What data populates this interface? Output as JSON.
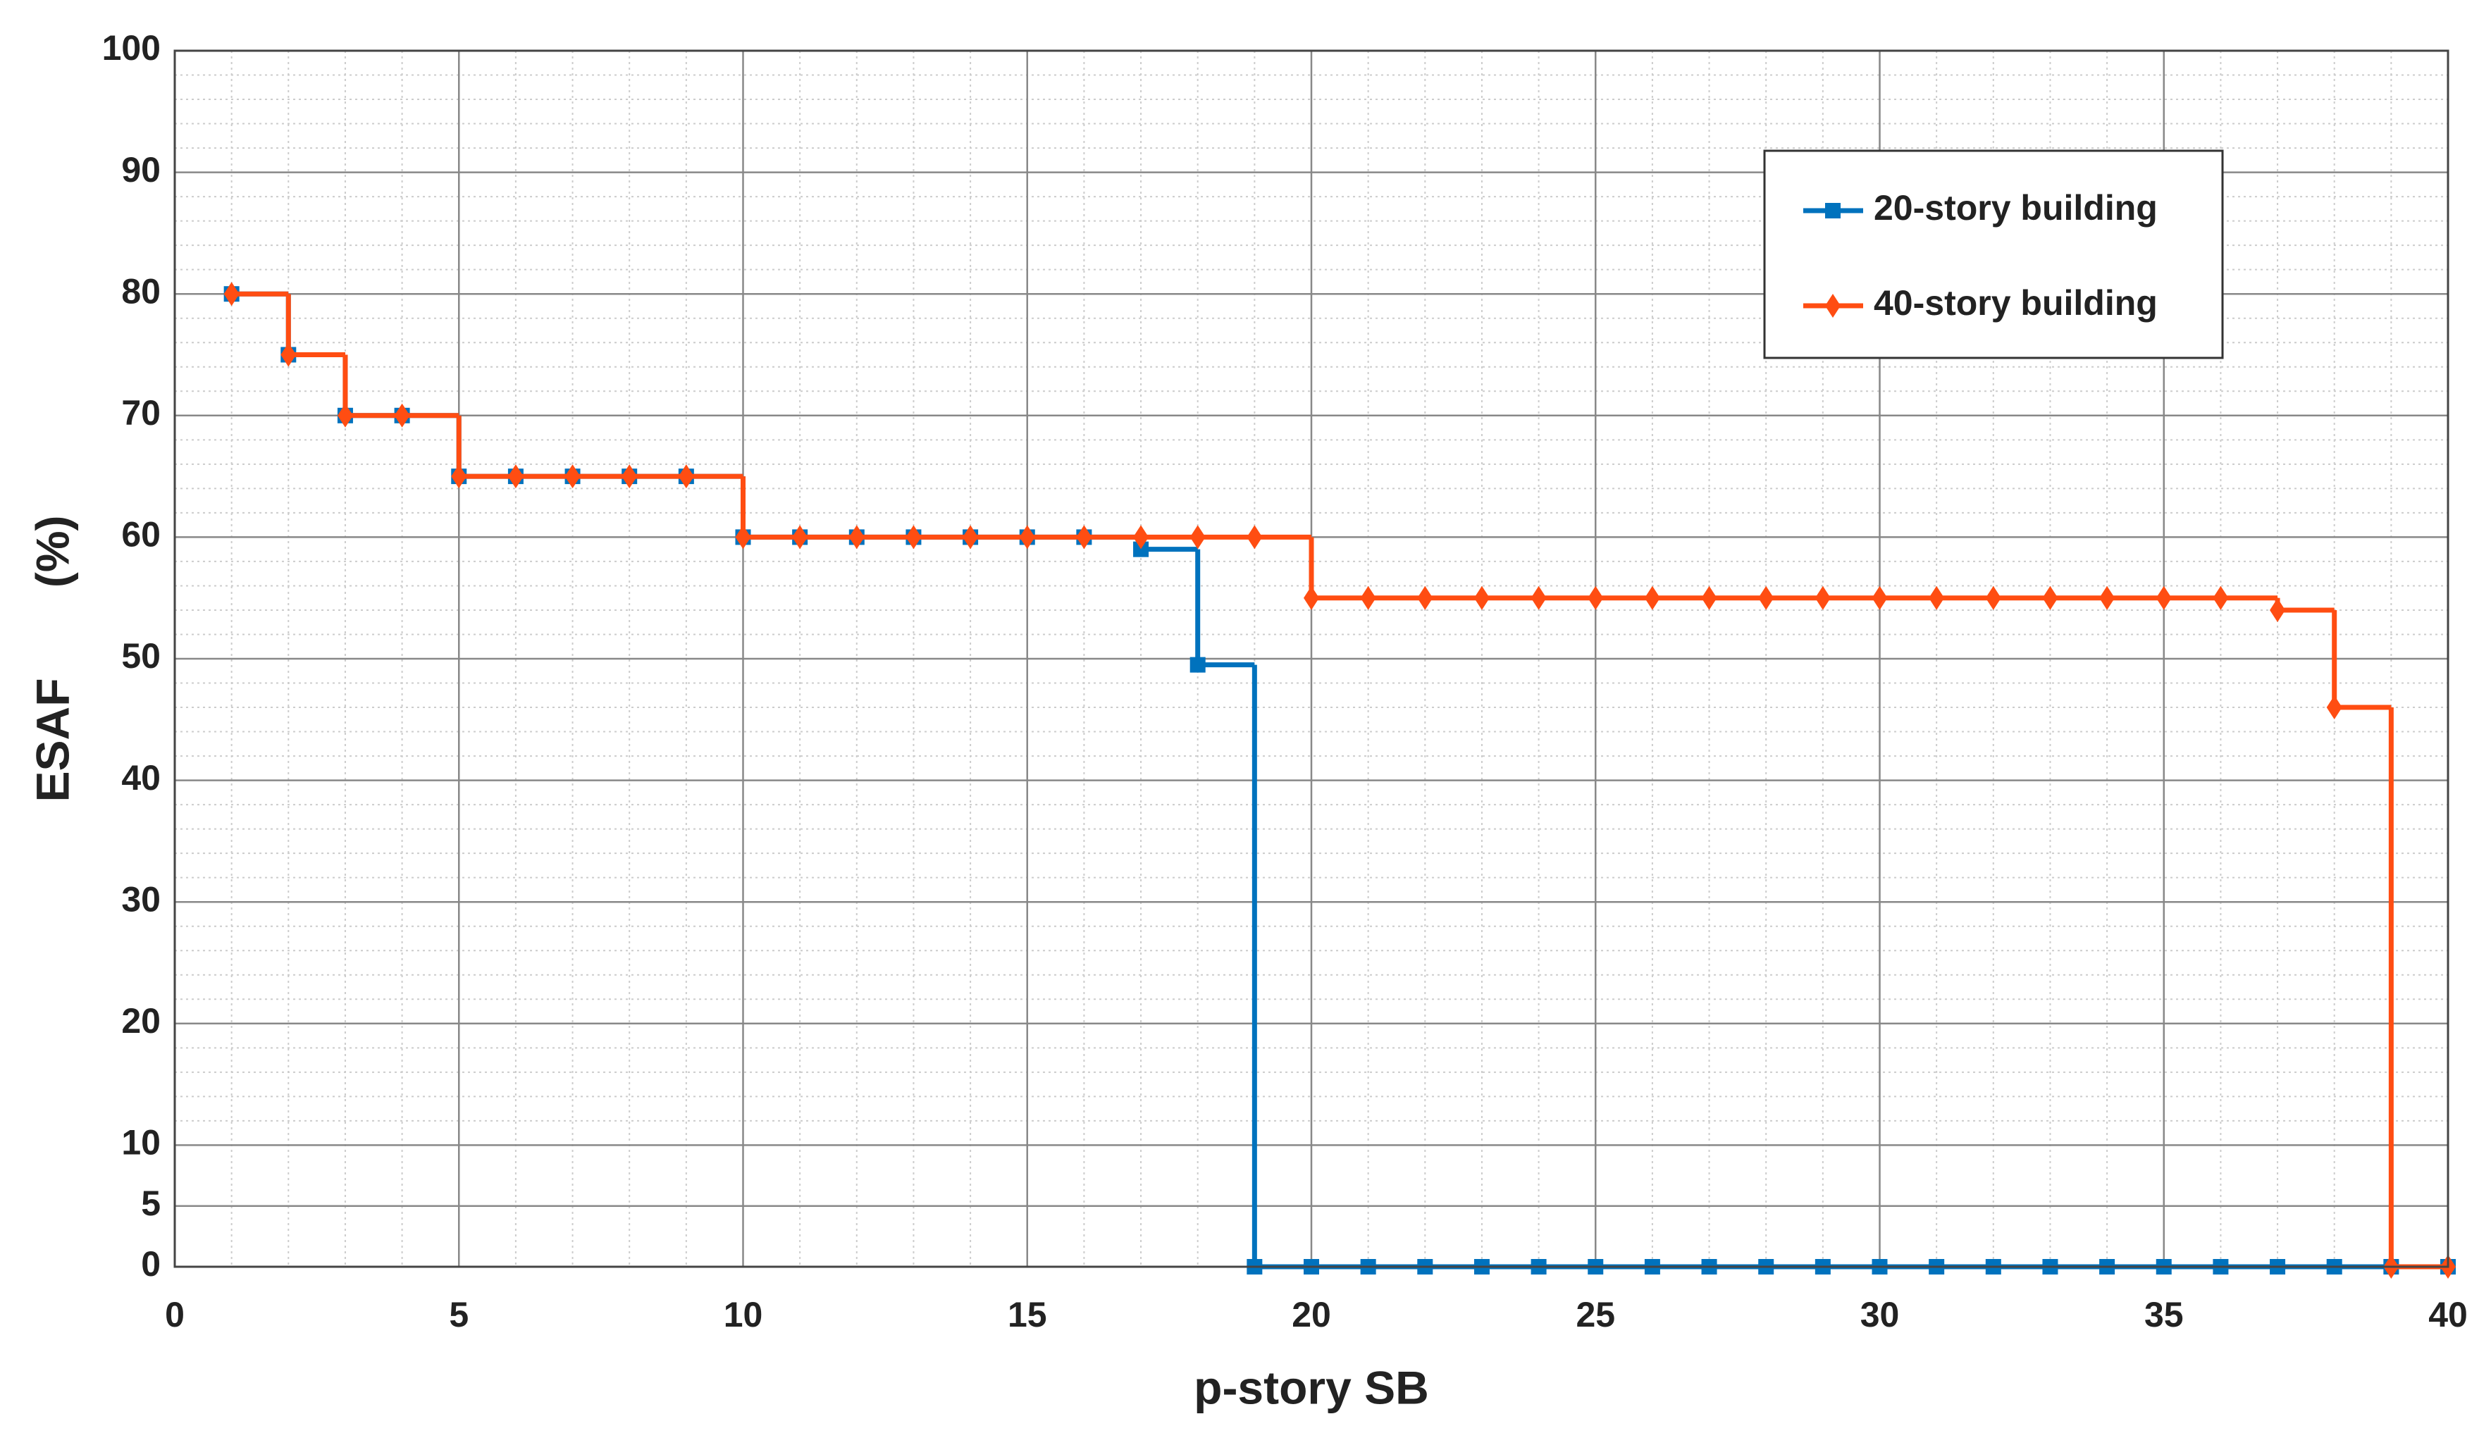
{
  "chart_data": {
    "type": "step",
    "xlabel": "p-story SB",
    "ylabel": "ESAF (%)",
    "x": [
      1,
      2,
      3,
      4,
      5,
      6,
      7,
      8,
      9,
      10,
      11,
      12,
      13,
      14,
      15,
      16,
      17,
      18,
      19,
      20,
      21,
      22,
      23,
      24,
      25,
      26,
      27,
      28,
      29,
      30,
      31,
      32,
      33,
      34,
      35,
      36,
      37,
      38,
      39,
      40
    ],
    "series": [
      {
        "name": "20-story building",
        "color": "#0072bd",
        "marker": "square",
        "values": [
          80,
          75,
          70,
          70,
          65,
          65,
          65,
          65,
          65,
          60,
          60,
          60,
          60,
          60,
          60,
          60,
          59,
          49.5,
          0,
          0,
          0,
          0,
          0,
          0,
          0,
          0,
          0,
          0,
          0,
          0,
          0,
          0,
          0,
          0,
          0,
          0,
          0,
          0,
          0,
          0
        ]
      },
      {
        "name": "40-story building",
        "color": "#ff4d12",
        "marker": "diamond",
        "values": [
          80,
          75,
          70,
          70,
          65,
          65,
          65,
          65,
          65,
          60,
          60,
          60,
          60,
          60,
          60,
          60,
          60,
          60,
          60,
          55,
          55,
          55,
          55,
          55,
          55,
          55,
          55,
          55,
          55,
          55,
          55,
          55,
          55,
          55,
          55,
          55,
          54,
          46,
          0,
          0
        ]
      }
    ],
    "xlim": [
      0,
      40
    ],
    "ylim": [
      0,
      100
    ],
    "xticks": [
      0,
      5,
      10,
      15,
      20,
      25,
      30,
      35,
      40
    ],
    "yticks": [
      0,
      5,
      10,
      20,
      30,
      40,
      50,
      60,
      70,
      80,
      90,
      100
    ],
    "grid": true,
    "legend": "upper-right"
  }
}
